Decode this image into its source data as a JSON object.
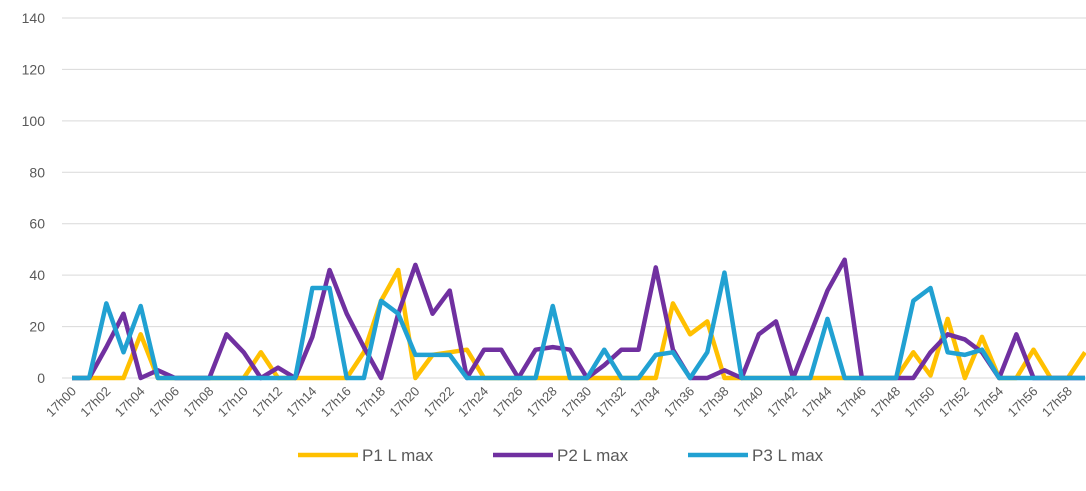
{
  "chart_data": {
    "type": "line",
    "categories": [
      "17h00",
      null,
      "17h02",
      null,
      "17h04",
      null,
      "17h06",
      null,
      "17h08",
      null,
      "17h10",
      null,
      "17h12",
      null,
      "17h14",
      null,
      "17h16",
      null,
      "17h18",
      null,
      "17h20",
      null,
      "17h22",
      null,
      "17h24",
      null,
      "17h26",
      null,
      "17h28",
      null,
      "17h30",
      null,
      "17h32",
      null,
      "17h34",
      null,
      "17h36",
      null,
      "17h38",
      null,
      "17h40",
      null,
      "17h42",
      null,
      "17h44",
      null,
      "17h46",
      null,
      "17h48",
      null,
      "17h50",
      null,
      "17h52",
      null,
      "17h54",
      null,
      "17h56",
      null,
      "17h58",
      null
    ],
    "series": [
      {
        "name": "P1 L max",
        "color": "#ffc000",
        "values": [
          0,
          0,
          0,
          0,
          17,
          0,
          0,
          0,
          0,
          0,
          0,
          10,
          0,
          0,
          0,
          0,
          0,
          10,
          30,
          42,
          0,
          9,
          10,
          11,
          0,
          0,
          0,
          0,
          0,
          0,
          0,
          0,
          0,
          0,
          0,
          29,
          17,
          22,
          0,
          0,
          0,
          0,
          0,
          0,
          0,
          0,
          0,
          0,
          0,
          10,
          1,
          23,
          0,
          16,
          0,
          0,
          11,
          0,
          0,
          10
        ]
      },
      {
        "name": "P2 L max",
        "color": "#7030a0",
        "values": [
          0,
          0,
          12,
          25,
          0,
          3,
          0,
          0,
          0,
          17,
          10,
          0,
          4,
          0,
          16,
          42,
          25,
          12,
          0,
          25,
          44,
          25,
          34,
          0,
          11,
          11,
          0,
          11,
          12,
          11,
          0,
          5,
          11,
          11,
          43,
          11,
          0,
          0,
          3,
          0,
          17,
          22,
          0,
          17,
          34,
          46,
          0,
          0,
          0,
          0,
          10,
          17,
          15,
          10,
          0,
          17,
          0,
          0,
          0,
          0
        ]
      },
      {
        "name": "P3 L max",
        "color": "#21a1d2",
        "values": [
          0,
          0,
          29,
          10,
          28,
          0,
          0,
          0,
          0,
          0,
          0,
          0,
          0,
          0,
          35,
          35,
          0,
          0,
          30,
          25,
          9,
          9,
          9,
          0,
          0,
          0,
          0,
          0,
          28,
          0,
          0,
          11,
          0,
          0,
          9,
          10,
          0,
          10,
          41,
          0,
          0,
          0,
          0,
          0,
          23,
          0,
          0,
          0,
          0,
          30,
          35,
          10,
          9,
          11,
          0,
          0,
          0,
          0,
          0,
          0
        ]
      }
    ],
    "ylim": [
      0,
      140
    ],
    "yticks": [
      0,
      20,
      40,
      60,
      80,
      100,
      120,
      140
    ],
    "grid": true,
    "legend": "bottom"
  }
}
